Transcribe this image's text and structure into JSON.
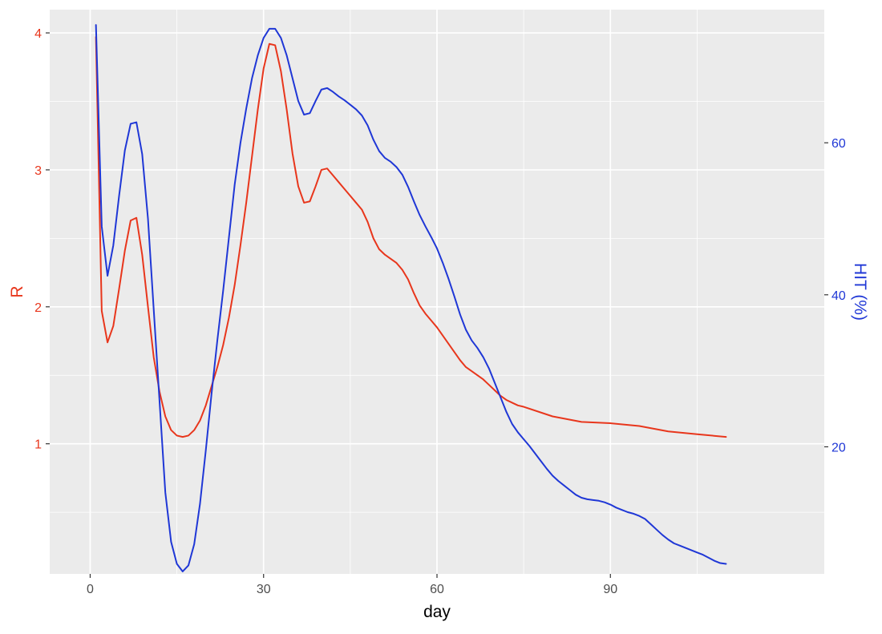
{
  "chart_data": {
    "type": "line",
    "xlabel": "day",
    "ylabel": "R",
    "ylabel_right": "HIT (%)",
    "xlim": [
      -7,
      127
    ],
    "ylim": [
      0.05,
      4.17
    ],
    "ylim_right": [
      3.28,
      77.52
    ],
    "x_ticks": [
      0,
      30,
      60,
      90
    ],
    "x_tick_labels": [
      "0",
      "30",
      "60",
      "90"
    ],
    "y_ticks": [
      1,
      2,
      3,
      4
    ],
    "y_tick_labels": [
      "1",
      "2",
      "3",
      "4"
    ],
    "y_ticks_right": [
      20,
      40,
      60
    ],
    "y_tick_labels_right": [
      "20",
      "40",
      "60"
    ],
    "grid": true,
    "legend": "none",
    "colors": {
      "R": "#e8361c",
      "HIT": "#1f37d6",
      "panel": "#ebebeb",
      "grid": "#ffffff"
    },
    "series": [
      {
        "axis": "left",
        "color": "#e8361c",
        "x": [
          1,
          2,
          3,
          4,
          5,
          6,
          7,
          8,
          9,
          10,
          11,
          12,
          13,
          14,
          15,
          16,
          17,
          18,
          19,
          20,
          21,
          22,
          23,
          24,
          25,
          26,
          27,
          28,
          29,
          30,
          31,
          32,
          33,
          34,
          35,
          36,
          37,
          38,
          39,
          40,
          41,
          42,
          43,
          44,
          45,
          46,
          47,
          48,
          49,
          50,
          51,
          52,
          53,
          54,
          55,
          56,
          57,
          58,
          59,
          60,
          61,
          62,
          63,
          64,
          65,
          66,
          67,
          68,
          69,
          70,
          71,
          72,
          73,
          74,
          75,
          80,
          85,
          90,
          95,
          100,
          105,
          110
        ],
        "y": [
          3.97,
          1.97,
          1.74,
          1.86,
          2.13,
          2.41,
          2.63,
          2.65,
          2.38,
          2.0,
          1.63,
          1.38,
          1.2,
          1.1,
          1.06,
          1.05,
          1.06,
          1.1,
          1.17,
          1.28,
          1.42,
          1.56,
          1.72,
          1.92,
          2.16,
          2.45,
          2.76,
          3.1,
          3.44,
          3.74,
          3.92,
          3.91,
          3.72,
          3.44,
          3.12,
          2.88,
          2.76,
          2.77,
          2.88,
          3.0,
          3.01,
          2.96,
          2.91,
          2.86,
          2.81,
          2.76,
          2.71,
          2.62,
          2.5,
          2.42,
          2.38,
          2.35,
          2.32,
          2.27,
          2.2,
          2.1,
          2.01,
          1.95,
          1.9,
          1.85,
          1.79,
          1.73,
          1.67,
          1.61,
          1.56,
          1.53,
          1.5,
          1.47,
          1.43,
          1.39,
          1.35,
          1.32,
          1.3,
          1.28,
          1.27,
          1.2,
          1.16,
          1.15,
          1.13,
          1.09,
          1.07,
          1.05
        ]
      },
      {
        "axis": "right",
        "color": "#1f37d6",
        "x": [
          1,
          2,
          3,
          4,
          5,
          6,
          7,
          8,
          9,
          10,
          11,
          12,
          13,
          14,
          15,
          16,
          17,
          18,
          19,
          20,
          21,
          22,
          23,
          24,
          25,
          26,
          27,
          28,
          29,
          30,
          31,
          32,
          33,
          34,
          35,
          36,
          37,
          38,
          39,
          40,
          41,
          42,
          43,
          44,
          45,
          46,
          47,
          48,
          49,
          50,
          51,
          52,
          53,
          54,
          55,
          56,
          57,
          58,
          59,
          60,
          61,
          62,
          63,
          64,
          65,
          66,
          67,
          68,
          69,
          70,
          71,
          72,
          73,
          74,
          75,
          76,
          77,
          78,
          79,
          80,
          81,
          82,
          83,
          84,
          85,
          86,
          87,
          88,
          89,
          90,
          91,
          92,
          93,
          94,
          95,
          96,
          97,
          98,
          99,
          100,
          101,
          102,
          103,
          104,
          105,
          106,
          107,
          108,
          109,
          110
        ],
        "y": [
          75.5,
          49.0,
          42.5,
          46.5,
          53.0,
          59.0,
          62.5,
          62.7,
          58.5,
          50.0,
          38.0,
          26.0,
          14.0,
          7.5,
          4.6,
          3.6,
          4.4,
          7.2,
          12.5,
          19.5,
          27.0,
          34.0,
          40.5,
          47.5,
          54.5,
          60.0,
          64.5,
          68.5,
          71.5,
          73.8,
          75.0,
          75.0,
          73.8,
          71.5,
          68.5,
          65.5,
          63.7,
          63.9,
          65.5,
          67.0,
          67.2,
          66.7,
          66.1,
          65.6,
          65.0,
          64.4,
          63.6,
          62.3,
          60.4,
          58.9,
          58.0,
          57.5,
          56.8,
          55.8,
          54.2,
          52.3,
          50.5,
          49.0,
          47.6,
          46.1,
          44.2,
          42.1,
          39.8,
          37.4,
          35.4,
          34.0,
          33.0,
          31.8,
          30.3,
          28.4,
          26.5,
          24.6,
          23.0,
          21.9,
          21.0,
          20.1,
          19.1,
          18.1,
          17.1,
          16.2,
          15.5,
          14.9,
          14.3,
          13.7,
          13.3,
          13.1,
          13.0,
          12.9,
          12.7,
          12.4,
          12.0,
          11.7,
          11.4,
          11.2,
          10.9,
          10.5,
          9.8,
          9.1,
          8.4,
          7.8,
          7.3,
          7.0,
          6.7,
          6.4,
          6.1,
          5.8,
          5.4,
          5.0,
          4.7,
          4.6
        ]
      }
    ]
  }
}
